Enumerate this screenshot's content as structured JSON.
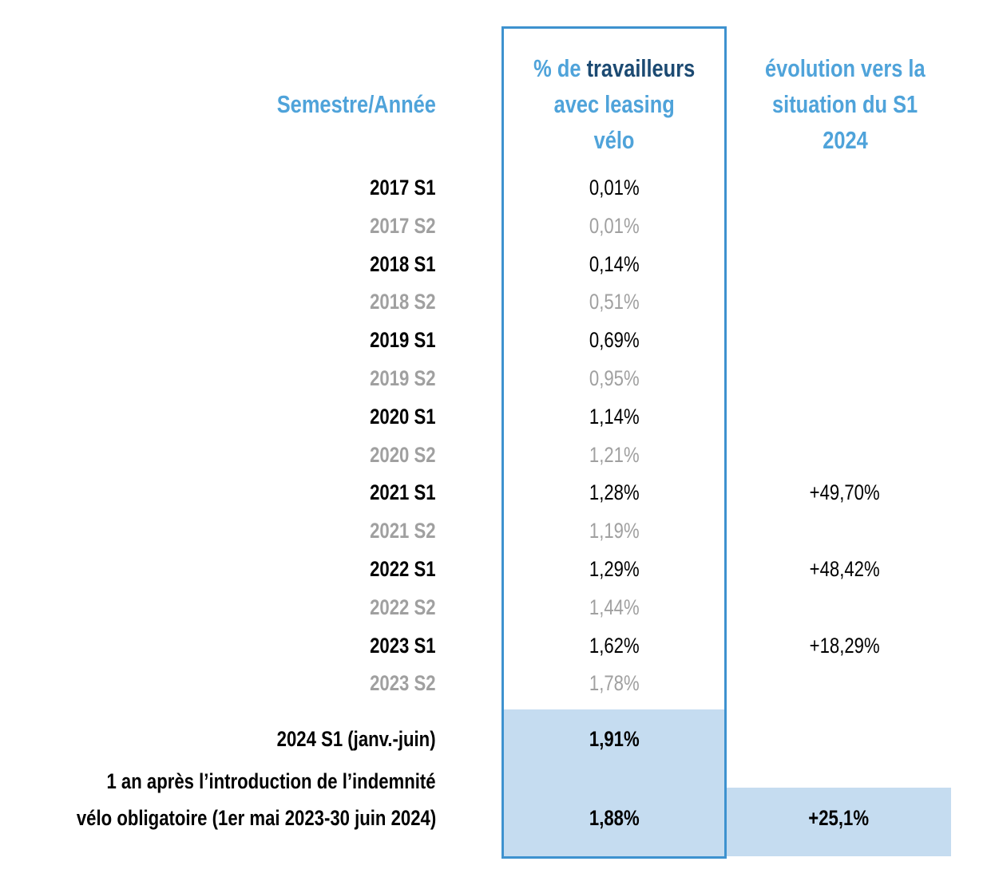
{
  "chart_data": {
    "type": "table",
    "headers": {
      "period": "Semestre/Année",
      "pct_part1": "% de ",
      "pct_part2": "travailleurs",
      "pct_part3": "avec leasing",
      "pct_part4": "vélo",
      "evo_line1": "évolution vers la",
      "evo_line2": "situation du S1",
      "evo_line3": "2024"
    },
    "rows": [
      {
        "period": "2017 S1",
        "pct": "0,01%",
        "evo": ""
      },
      {
        "period": "2017 S2",
        "pct": "0,01%",
        "evo": ""
      },
      {
        "period": "2018 S1",
        "pct": "0,14%",
        "evo": ""
      },
      {
        "period": "2018 S2",
        "pct": "0,51%",
        "evo": ""
      },
      {
        "period": "2019 S1",
        "pct": "0,69%",
        "evo": ""
      },
      {
        "period": "2019 S2",
        "pct": "0,95%",
        "evo": ""
      },
      {
        "period": "2020 S1",
        "pct": "1,14%",
        "evo": ""
      },
      {
        "period": "2020 S2",
        "pct": "1,21%",
        "evo": ""
      },
      {
        "period": "2021 S1",
        "pct": "1,28%",
        "evo": "+49,70%"
      },
      {
        "period": "2021 S2",
        "pct": "1,19%",
        "evo": ""
      },
      {
        "period": "2022 S1",
        "pct": "1,29%",
        "evo": "+48,42%"
      },
      {
        "period": "2022 S2",
        "pct": "1,44%",
        "evo": ""
      },
      {
        "period": "2023 S1",
        "pct": "1,62%",
        "evo": "+18,29%"
      },
      {
        "period": "2023 S2",
        "pct": "1,78%",
        "evo": ""
      }
    ],
    "summary": {
      "period": "2024 S1 (janv.-juin)",
      "pct": "1,91%"
    },
    "year_after": {
      "period_line1": "1 an après l’introduction de l’indemnité",
      "period_line2": "vélo obligatoire (1er mai 2023-30 juin 2024)",
      "pct": "1,88%",
      "evo": "+25,1%"
    },
    "colors": {
      "header_blue": "#4fa3da",
      "header_dark": "#1c4a72",
      "highlight_border": "#3e92cf",
      "highlight_fill": "#c5dcf0",
      "s1_text": "#000000",
      "s2_text": "#a0a0a0"
    }
  }
}
